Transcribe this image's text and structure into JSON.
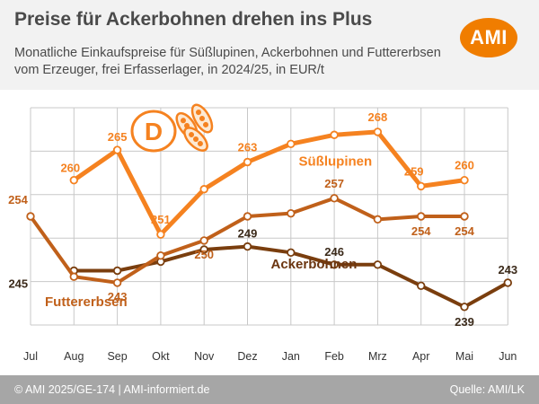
{
  "header": {
    "title": "Preise für Ackerbohnen drehen ins Plus",
    "subtitle_line1": "Monatliche Einkaufspreise für Süßlupinen, Ackerbohnen und Futtererbsen",
    "subtitle_line2": "vom Erzeuger, frei Erfasserlager, in 2024/25, in EUR/t",
    "logo_text": "AMI",
    "logo_color": "#f07d00"
  },
  "footer": {
    "left": "© AMI 2025/GE-174 | AMI-informiert.de",
    "right": "Quelle: AMI/LK"
  },
  "badge": {
    "letter": "D",
    "icon": "beans-icon"
  },
  "chart_data": {
    "type": "line",
    "categories": [
      "Jul",
      "Aug",
      "Sep",
      "Okt",
      "Nov",
      "Dez",
      "Jan",
      "Feb",
      "Mrz",
      "Apr",
      "Mai",
      "Jun"
    ],
    "ylim": [
      236,
      272
    ],
    "grid": true,
    "series": [
      {
        "name": "Süßlupinen",
        "color": "#f58220",
        "values": [
          null,
          260,
          265,
          251,
          258.5,
          263,
          266,
          267.5,
          268,
          259,
          260,
          null
        ],
        "labels": [
          null,
          "260",
          "265",
          "251",
          null,
          "263",
          null,
          null,
          "268",
          "259",
          "260",
          null
        ]
      },
      {
        "name": "Ackerbohnen",
        "color": "#7a3e0e",
        "values": [
          null,
          245,
          245,
          246.5,
          248.5,
          249,
          248,
          246,
          246,
          242.5,
          239,
          243
        ],
        "labels": [
          null,
          "245",
          null,
          null,
          null,
          "249",
          null,
          "246",
          null,
          null,
          "239",
          "243"
        ]
      },
      {
        "name": "Futtererbsen",
        "color": "#c0601a",
        "values": [
          254,
          244,
          243,
          247.5,
          250,
          254,
          254.5,
          257,
          253.5,
          254,
          254,
          null
        ],
        "labels": [
          "254",
          null,
          "243",
          null,
          "250",
          null,
          null,
          "257",
          null,
          "254",
          "254",
          null
        ]
      }
    ]
  }
}
